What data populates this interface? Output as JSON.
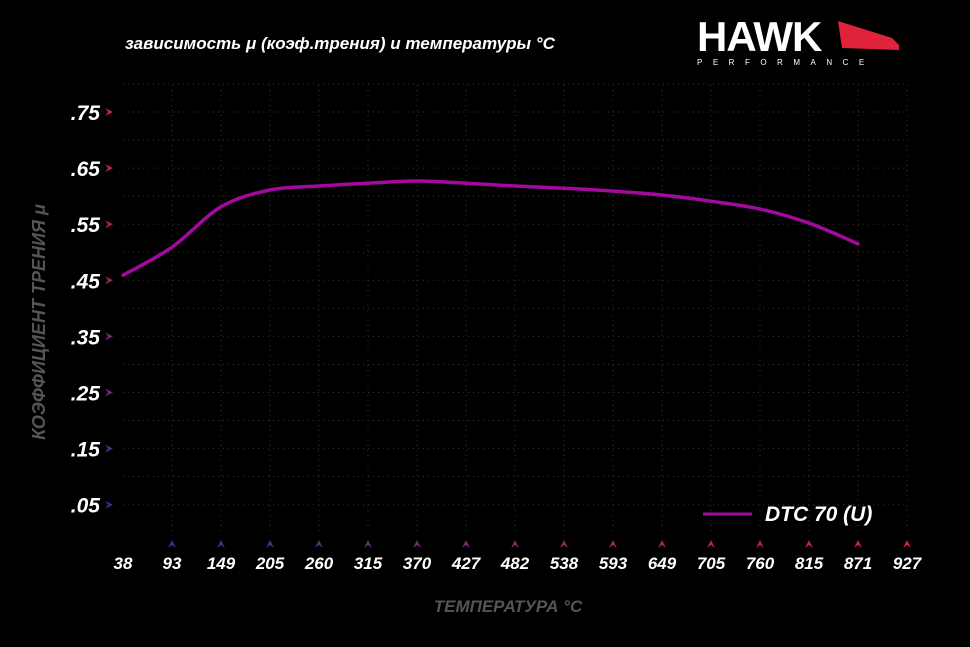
{
  "header": {
    "title": "зависимость μ (коэф.трения) и температуры °C"
  },
  "logo": {
    "brand": "HAWK",
    "sub": "PERFORMANCE",
    "accent": "#e0233a"
  },
  "chart_data": {
    "type": "line",
    "title": "зависимость μ (коэф.трения) и температуры °C",
    "xlabel": "ТЕМПЕРАТУРА °C",
    "ylabel": "КОЭФФИЦИЕНТ ТРЕНИЯ μ",
    "x_ticks": [
      "38",
      "93",
      "149",
      "205",
      "260",
      "315",
      "370",
      "427",
      "482",
      "538",
      "593",
      "649",
      "705",
      "760",
      "815",
      "871",
      "927"
    ],
    "y_ticks": [
      ".75",
      ".65",
      ".55",
      ".45",
      ".35",
      ".25",
      ".15",
      ".05"
    ],
    "y_tick_values": [
      0.75,
      0.65,
      0.55,
      0.45,
      0.35,
      0.25,
      0.15,
      0.05
    ],
    "ylim": [
      0,
      0.8
    ],
    "grid": true,
    "legend_position": "bottom-right",
    "series": [
      {
        "name": "DTC 70 (U)",
        "color": "#a3099e",
        "x": [
          38,
          93,
          149,
          205,
          260,
          315,
          370,
          427,
          482,
          538,
          593,
          649,
          705,
          760,
          815,
          871
        ],
        "y": [
          0.459,
          0.509,
          0.581,
          0.611,
          0.618,
          0.623,
          0.627,
          0.623,
          0.618,
          0.614,
          0.609,
          0.602,
          0.591,
          0.577,
          0.552,
          0.515
        ]
      }
    ]
  }
}
